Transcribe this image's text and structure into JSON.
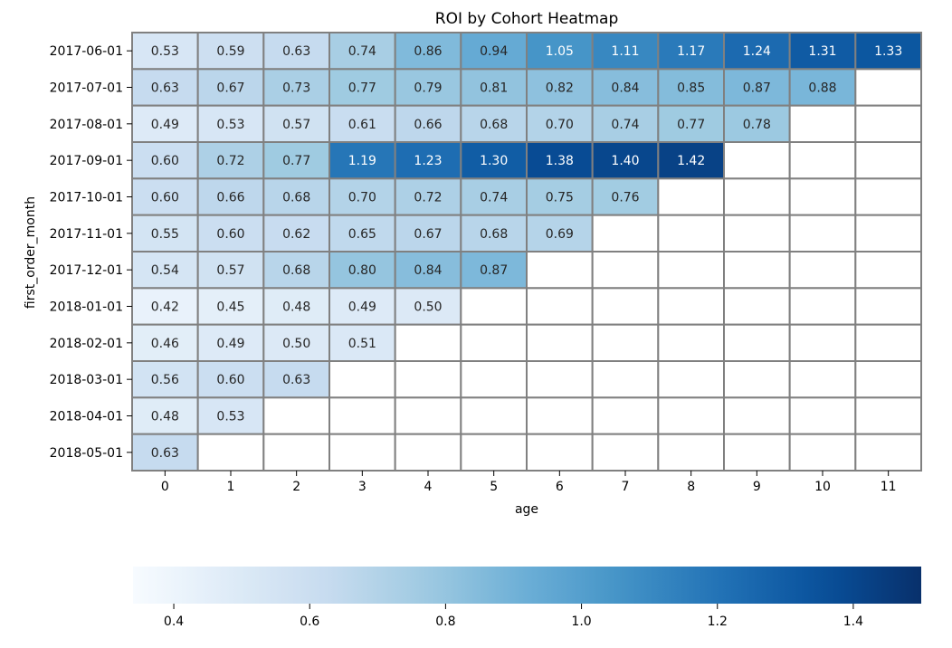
{
  "chart_data": {
    "type": "heatmap",
    "title": "ROI by Cohort Heatmap",
    "xlabel": "age",
    "ylabel": "first_order_month",
    "x": [
      0,
      1,
      2,
      3,
      4,
      5,
      6,
      7,
      8,
      9,
      10,
      11
    ],
    "y": [
      "2017-06-01",
      "2017-07-01",
      "2017-08-01",
      "2017-09-01",
      "2017-10-01",
      "2017-11-01",
      "2017-12-01",
      "2018-01-01",
      "2018-02-01",
      "2018-03-01",
      "2018-04-01",
      "2018-05-01"
    ],
    "values": [
      [
        0.53,
        0.59,
        0.63,
        0.74,
        0.86,
        0.94,
        1.05,
        1.11,
        1.17,
        1.24,
        1.31,
        1.33
      ],
      [
        0.63,
        0.67,
        0.73,
        0.77,
        0.79,
        0.81,
        0.82,
        0.84,
        0.85,
        0.87,
        0.88,
        null
      ],
      [
        0.49,
        0.53,
        0.57,
        0.61,
        0.66,
        0.68,
        0.7,
        0.74,
        0.77,
        0.78,
        null,
        null
      ],
      [
        0.6,
        0.72,
        0.77,
        1.19,
        1.23,
        1.3,
        1.38,
        1.4,
        1.42,
        null,
        null,
        null
      ],
      [
        0.6,
        0.66,
        0.68,
        0.7,
        0.72,
        0.74,
        0.75,
        0.76,
        null,
        null,
        null,
        null
      ],
      [
        0.55,
        0.6,
        0.62,
        0.65,
        0.67,
        0.68,
        0.69,
        null,
        null,
        null,
        null,
        null
      ],
      [
        0.54,
        0.57,
        0.68,
        0.8,
        0.84,
        0.87,
        null,
        null,
        null,
        null,
        null,
        null
      ],
      [
        0.42,
        0.45,
        0.48,
        0.49,
        0.5,
        null,
        null,
        null,
        null,
        null,
        null,
        null
      ],
      [
        0.46,
        0.49,
        0.5,
        0.51,
        null,
        null,
        null,
        null,
        null,
        null,
        null,
        null
      ],
      [
        0.56,
        0.6,
        0.63,
        null,
        null,
        null,
        null,
        null,
        null,
        null,
        null,
        null
      ],
      [
        0.48,
        0.53,
        null,
        null,
        null,
        null,
        null,
        null,
        null,
        null,
        null,
        null
      ],
      [
        0.63,
        null,
        null,
        null,
        null,
        null,
        null,
        null,
        null,
        null,
        null,
        null
      ]
    ],
    "colormap": "Blues",
    "vmin": 0.34,
    "vmax": 1.5,
    "colorbar_ticks": [
      0.4,
      0.6,
      0.8,
      1.0,
      1.2,
      1.4
    ],
    "colorbar_tick_labels": [
      "0.4",
      "0.6",
      "0.8",
      "1.0",
      "1.2",
      "1.4"
    ],
    "colorbar_orientation": "horizontal",
    "annotation_format": "2 decimals",
    "cell_border_color": "#808080"
  }
}
